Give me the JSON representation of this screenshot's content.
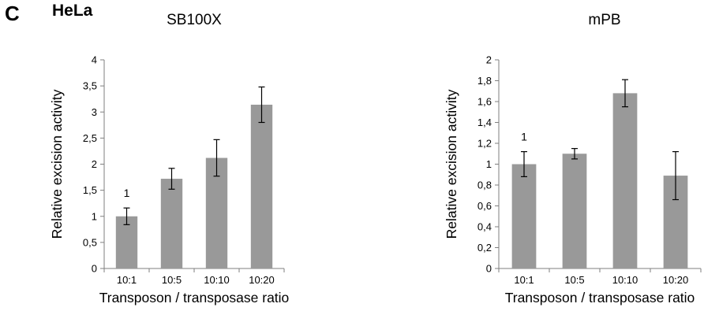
{
  "figure": {
    "panel_letter": "C",
    "cell_line": "HeLa"
  },
  "colors": {
    "bar": "#999999",
    "axis": "#7f7f7f",
    "error_bar": "#000000"
  },
  "chart_data": [
    {
      "type": "bar",
      "title": "SB100X",
      "xlabel": "Transposon / transposase ratio",
      "ylabel": "Relative excision activity",
      "categories": [
        "10:1",
        "10:5",
        "10:10",
        "10:20"
      ],
      "values": [
        1.0,
        1.72,
        2.12,
        3.14
      ],
      "errors": [
        0.16,
        0.2,
        0.35,
        0.34
      ],
      "data_labels": [
        "1",
        "",
        "",
        ""
      ],
      "ylim": [
        0,
        4
      ],
      "yticks": [
        "0",
        "0,5",
        "1",
        "1,5",
        "2",
        "2,5",
        "3",
        "3,5",
        "4"
      ],
      "grid": false,
      "legend": "none"
    },
    {
      "type": "bar",
      "title": "mPB",
      "xlabel": "Transposon / transposase ratio",
      "ylabel": "Relative excision activity",
      "categories": [
        "10:1",
        "10:5",
        "10:10",
        "10:20"
      ],
      "values": [
        1.0,
        1.1,
        1.68,
        0.89
      ],
      "errors": [
        0.12,
        0.05,
        0.13,
        0.23
      ],
      "data_labels": [
        "1",
        "",
        "",
        ""
      ],
      "ylim": [
        0,
        2
      ],
      "yticks": [
        "0",
        "0,2",
        "0,4",
        "0,6",
        "0,8",
        "1",
        "1,2",
        "1,4",
        "1,6",
        "1,8",
        "2"
      ],
      "grid": false,
      "legend": "none"
    }
  ]
}
